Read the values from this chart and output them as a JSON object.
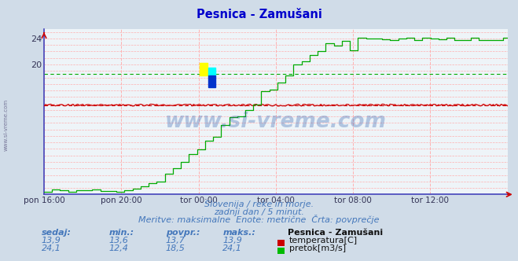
{
  "title": "Pesnica - Zamušani",
  "bg_color": "#d0dce8",
  "plot_bg_color": "#eef4f8",
  "grid_color": "#ffb0b0",
  "x_labels": [
    "pon 16:00",
    "pon 20:00",
    "tor 00:00",
    "tor 04:00",
    "tor 08:00",
    "tor 12:00"
  ],
  "x_ticks_norm": [
    0.0,
    0.1667,
    0.3333,
    0.5,
    0.6667,
    0.8333
  ],
  "ylim": [
    0,
    25.5
  ],
  "ytick_vals": [
    20,
    24
  ],
  "ytick_labels": [
    "20",
    "24"
  ],
  "temp_color": "#cc0000",
  "flow_color": "#00aa00",
  "avg_temp": 13.7,
  "avg_flow": 18.5,
  "watermark_color": "#2255aa",
  "subtitle1": "Slovenija / reke in morje.",
  "subtitle2": "zadnji dan / 5 minut.",
  "subtitle3": "Meritve: maksimalne  Enote: metrične  Črta: povprečje",
  "footer_color": "#4477bb",
  "legend_title": "Pesnica - Zamušani",
  "legend_temp_label": "temperatura[C]",
  "legend_flow_label": "pretok[m3/s]",
  "stat_headers": [
    "sedaj:",
    "min.:",
    "povpr.:",
    "maks.:"
  ],
  "temp_stats": [
    "13,9",
    "13,6",
    "13,7",
    "13,9"
  ],
  "flow_stats": [
    "24,1",
    "12,4",
    "18,5",
    "24,1"
  ],
  "temp_color_box": "#cc0000",
  "flow_color_box": "#00bb00",
  "left_spine_color": "#4444bb",
  "bottom_spine_color": "#4444bb",
  "arrow_color": "#cc0000",
  "n_points": 289
}
